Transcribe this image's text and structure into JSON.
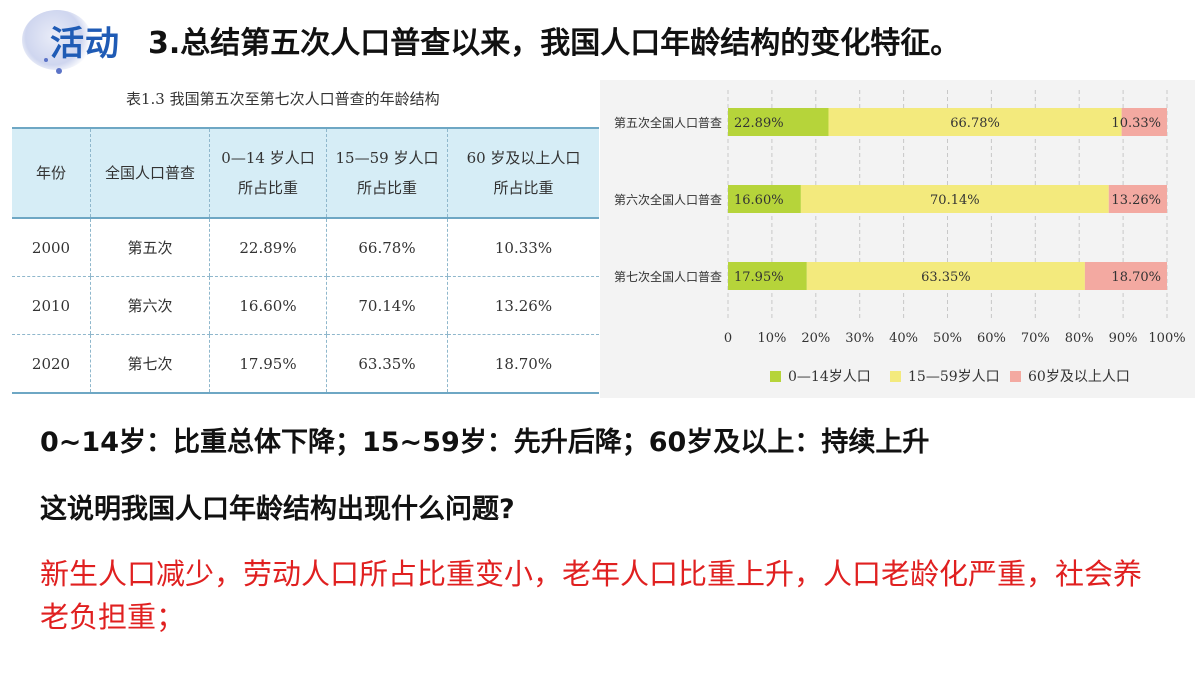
{
  "header": {
    "badge": "活动",
    "title": "3.总结第五次人口普查以来，我国人口年龄结构的变化特征。"
  },
  "table": {
    "caption": "表1.3    我国第五次至第七次人口普查的年龄结构",
    "headers": [
      "年份",
      "全国人口普查",
      "0—14 岁人口\n所占比重",
      "15—59 岁人口\n所占比重",
      "60 岁及以上人口\n所占比重"
    ],
    "rows": [
      [
        "2000",
        "第五次",
        "22.89%",
        "66.78%",
        "10.33%"
      ],
      [
        "2010",
        "第六次",
        "16.60%",
        "70.14%",
        "13.26%"
      ],
      [
        "2020",
        "第七次",
        "17.95%",
        "63.35%",
        "18.70%"
      ]
    ]
  },
  "chart_data": {
    "type": "bar",
    "orientation": "horizontal-stacked",
    "categories": [
      "第五次全国人口普查",
      "第六次全国人口普查",
      "第七次全国人口普查"
    ],
    "series": [
      {
        "name": "0—14岁人口",
        "values": [
          22.89,
          16.6,
          17.95
        ],
        "labels": [
          "22.89%",
          "16.60%",
          "17.95%"
        ],
        "color": "#b6d43a"
      },
      {
        "name": "15—59岁人口",
        "values": [
          66.78,
          70.14,
          63.35
        ],
        "labels": [
          "66.78%",
          "70.14%",
          "63.35%"
        ],
        "color": "#f3ea7d"
      },
      {
        "name": "60岁及以上人口",
        "values": [
          10.33,
          13.26,
          18.7
        ],
        "labels": [
          "10.33%",
          "13.26%",
          "18.70%"
        ],
        "color": "#f3a9a1"
      }
    ],
    "xlim": [
      0,
      100
    ],
    "xticks": [
      "0",
      "10%",
      "20%",
      "30%",
      "40%",
      "50%",
      "60%",
      "70%",
      "80%",
      "90%",
      "100%"
    ],
    "grid": true,
    "legend": "bottom"
  },
  "content": {
    "line1": "0~14岁：比重总体下降；15~59岁：先升后降；60岁及以上：持续上升",
    "line2": "这说明我国人口年龄结构出现什么问题?",
    "answer": "新生人口减少，劳动人口所占比重变小，老年人口比重上升，人口老龄化严重，社会养老负担重；"
  }
}
